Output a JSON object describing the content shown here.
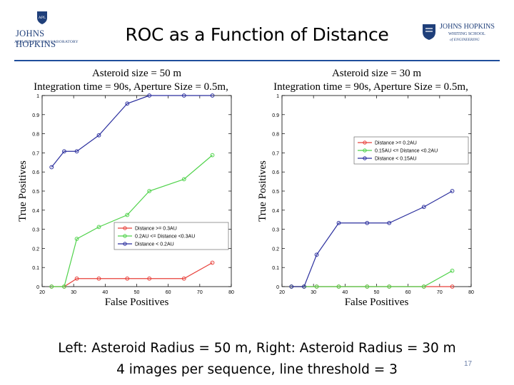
{
  "slide": {
    "title": "ROC as a Function of Distance",
    "caption_line1": "Left: Asteroid Radius = 50 m, Right: Asteroid Radius = 30 m",
    "caption_line2": "4 images per sequence, line threshold = 3",
    "page_number": "17"
  },
  "logos": {
    "left": {
      "line1": "JOHNS HOPKINS",
      "line2": "APPLIED PHYSICS LABORATORY",
      "badge": "APL"
    },
    "right": {
      "line1": "JOHNS HOPKINS",
      "line2": "WHITING SCHOOL",
      "line3": "of ENGINEERING"
    }
  },
  "colors": {
    "red": "#e8403a",
    "green": "#4fd24a",
    "blue": "#2b2f9e",
    "rule": "#1f4e9c"
  },
  "chart_data": [
    {
      "type": "line",
      "title": "Asteroid size = 50 m",
      "subtitle": "Integration time = 90s, Aperture Size = 0.5m,",
      "xlabel": "False Positives",
      "ylabel": "True Positives",
      "xlim": [
        20,
        80
      ],
      "ylim": [
        0,
        1
      ],
      "xticks": [
        "20",
        "30",
        "40",
        "50",
        "60",
        "70",
        "80"
      ],
      "yticks": [
        "0",
        "0.1",
        "0.2",
        "0.3",
        "0.4",
        "0.5",
        "0.6",
        "0.7",
        "0.8",
        "0.9",
        "1"
      ],
      "legend_position": "bottom-right",
      "series": [
        {
          "name": "Distance >= 0.3AU",
          "color": "red",
          "x": [
            23,
            27,
            31,
            38,
            47,
            54,
            65,
            74
          ],
          "y": [
            0,
            0,
            0.042,
            0.042,
            0.042,
            0.042,
            0.042,
            0.125
          ]
        },
        {
          "name": "0.2AU <= Distance <0.3AU",
          "color": "green",
          "x": [
            23,
            27,
            31,
            38,
            47,
            54,
            65,
            74
          ],
          "y": [
            0,
            0,
            0.25,
            0.312,
            0.375,
            0.5,
            0.562,
            0.688
          ]
        },
        {
          "name": "Distance < 0.2AU",
          "color": "blue",
          "x": [
            23,
            27,
            31,
            38,
            47,
            54,
            65,
            74
          ],
          "y": [
            0.625,
            0.708,
            0.708,
            0.792,
            0.958,
            1.0,
            1.0,
            1.0
          ]
        }
      ]
    },
    {
      "type": "line",
      "title": "Asteroid size = 30 m",
      "subtitle": "Integration time = 90s, Aperture Size = 0.5m,",
      "xlabel": "False Positives",
      "ylabel": "True Positives",
      "xlim": [
        20,
        80
      ],
      "ylim": [
        0,
        1
      ],
      "xticks": [
        "20",
        "30",
        "40",
        "50",
        "60",
        "70",
        "80"
      ],
      "yticks": [
        "0",
        "0.1",
        "0.2",
        "0.3",
        "0.4",
        "0.5",
        "0.6",
        "0.7",
        "0.8",
        "0.9",
        "1"
      ],
      "legend_position": "top-right",
      "series": [
        {
          "name": "Distance >= 0.2AU",
          "color": "red",
          "x": [
            23,
            27,
            31,
            38,
            47,
            54,
            65,
            74
          ],
          "y": [
            0,
            0,
            0,
            0,
            0,
            0,
            0,
            0
          ]
        },
        {
          "name": "0.15AU <= Distance <0.2AU",
          "color": "green",
          "x": [
            23,
            27,
            31,
            38,
            47,
            54,
            65,
            74
          ],
          "y": [
            0,
            0,
            0,
            0,
            0,
            0,
            0,
            0.083
          ]
        },
        {
          "name": "Distance < 0.15AU",
          "color": "blue",
          "x": [
            23,
            27,
            31,
            38,
            47,
            54,
            65,
            74
          ],
          "y": [
            0,
            0,
            0.167,
            0.333,
            0.333,
            0.333,
            0.417,
            0.5
          ]
        }
      ]
    }
  ]
}
